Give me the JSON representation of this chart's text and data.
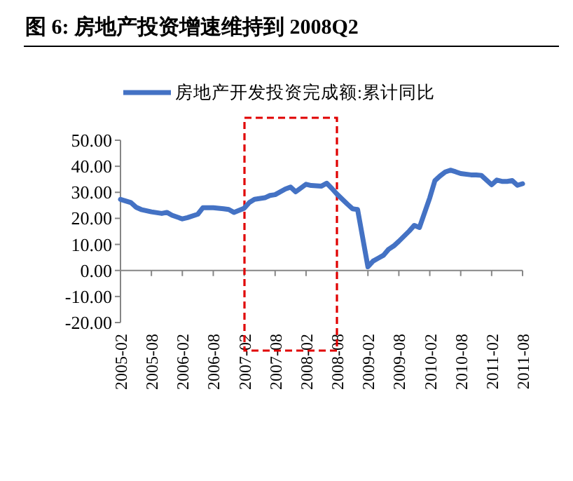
{
  "chart_data": {
    "type": "line",
    "title": "图 6: 房地产投资增速维持到 2008Q2",
    "x": [
      "2005-02",
      "2005-04",
      "2005-05",
      "2005-06",
      "2005-08",
      "2005-10",
      "2005-11",
      "2005-12",
      "2006-02",
      "2006-03",
      "2006-05",
      "2006-06",
      "2006-08",
      "2006-10",
      "2006-11",
      "2006-12",
      "2007-02",
      "2007-03",
      "2007-04",
      "2007-06",
      "2007-07",
      "2007-08",
      "2007-10",
      "2007-11",
      "2007-12",
      "2008-02",
      "2008-03",
      "2008-05",
      "2008-06",
      "2008-07",
      "2008-08",
      "2008-10",
      "2008-11",
      "2008-12",
      "2009-02",
      "2009-03",
      "2009-04",
      "2009-05",
      "2009-06",
      "2009-07",
      "2009-08",
      "2009-10",
      "2009-11",
      "2009-12",
      "2010-02",
      "2010-03",
      "2010-04",
      "2010-05",
      "2010-06",
      "2010-07",
      "2010-08",
      "2010-10",
      "2010-11",
      "2010-12",
      "2011-02",
      "2011-03",
      "2011-04",
      "2011-05",
      "2011-06",
      "2011-07",
      "2011-08"
    ],
    "series": [
      {
        "name": "房地产开发投资完成额:累计同比",
        "color": "#4472c4",
        "values": [
          27.3,
          26.1,
          24.3,
          23.4,
          22.5,
          21.9,
          22.3,
          21.2,
          19.8,
          20.3,
          21.6,
          24.1,
          24.1,
          23.7,
          23.4,
          22.3,
          23.9,
          26.1,
          27.3,
          27.9,
          28.8,
          29.1,
          31.3,
          32.0,
          30.2,
          33.1,
          32.6,
          32.4,
          33.5,
          31.5,
          29.3,
          25.5,
          23.7,
          23.4,
          1.4,
          3.6,
          4.7,
          5.8,
          8.1,
          9.4,
          11.2,
          15.1,
          17.3,
          16.5,
          27.9,
          34.5,
          36.3,
          37.8,
          38.5,
          37.9,
          37.2,
          36.7,
          36.7,
          36.5,
          32.9,
          34.7,
          34.2,
          34.2,
          34.5,
          32.7,
          33.3
        ]
      }
    ],
    "xlim": [
      "2005-02",
      "2011-08"
    ],
    "xticks": [
      "2005-02",
      "2005-08",
      "2006-02",
      "2006-08",
      "2007-02",
      "2007-08",
      "2008-02",
      "2008-08",
      "2009-02",
      "2009-08",
      "2010-02",
      "2010-08",
      "2011-02",
      "2011-08"
    ],
    "ylim": [
      -20,
      50
    ],
    "yticks": [
      {
        "value": -20,
        "label": "-20.00"
      },
      {
        "value": -10,
        "label": "-10.00"
      },
      {
        "value": 0,
        "label": "0.00"
      },
      {
        "value": 10,
        "label": "10.00"
      },
      {
        "value": 20,
        "label": "20.00"
      },
      {
        "value": 30,
        "label": "30.00"
      },
      {
        "value": 40,
        "label": "40.00"
      },
      {
        "value": 50,
        "label": "50.00"
      }
    ],
    "legend": "top",
    "marker": "none",
    "line_style": "solid"
  }
}
